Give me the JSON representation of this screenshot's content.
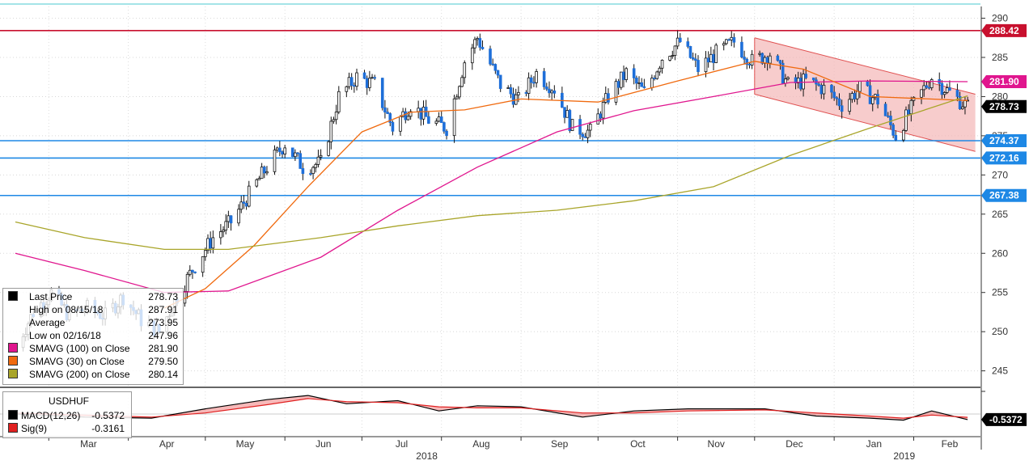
{
  "chart_data": [
    {
      "type": "candlestick",
      "title": "",
      "ticker": "USDHUF",
      "xlabel": "",
      "ylabel": "",
      "ylim": [
        243,
        291.5
      ],
      "y_ticks": [
        245,
        250,
        255,
        260,
        265,
        270,
        275,
        280,
        285,
        290
      ],
      "months": [
        "Mar",
        "Apr",
        "May",
        "Jun",
        "Jul",
        "Aug",
        "Sep",
        "Oct",
        "Nov",
        "Dec",
        "Jan",
        "Feb"
      ],
      "year_labels": [
        "2018",
        "2019"
      ],
      "grid": true,
      "price_path": [
        {
          "date": "2018-02-16",
          "price": 248.0
        },
        {
          "date": "2018-02-23",
          "price": 252.5
        },
        {
          "date": "2018-03-02",
          "price": 255.0
        },
        {
          "date": "2018-03-09",
          "price": 252.0
        },
        {
          "date": "2018-03-16",
          "price": 253.0
        },
        {
          "date": "2018-03-23",
          "price": 252.0
        },
        {
          "date": "2018-03-30",
          "price": 254.5
        },
        {
          "date": "2018-04-06",
          "price": 251.5
        },
        {
          "date": "2018-04-13",
          "price": 250.0
        },
        {
          "date": "2018-04-20",
          "price": 254.5
        },
        {
          "date": "2018-04-27",
          "price": 258.5
        },
        {
          "date": "2018-05-04",
          "price": 262.0
        },
        {
          "date": "2018-05-11",
          "price": 264.0
        },
        {
          "date": "2018-05-18",
          "price": 267.5
        },
        {
          "date": "2018-05-25",
          "price": 271.0
        },
        {
          "date": "2018-06-01",
          "price": 274.0
        },
        {
          "date": "2018-06-08",
          "price": 271.0
        },
        {
          "date": "2018-06-15",
          "price": 271.5
        },
        {
          "date": "2018-06-22",
          "price": 280.0
        },
        {
          "date": "2018-06-29",
          "price": 282.5
        },
        {
          "date": "2018-07-06",
          "price": 281.5
        },
        {
          "date": "2018-07-13",
          "price": 276.0
        },
        {
          "date": "2018-07-20",
          "price": 279.0
        },
        {
          "date": "2018-07-27",
          "price": 277.0
        },
        {
          "date": "2018-08-03",
          "price": 276.0
        },
        {
          "date": "2018-08-10",
          "price": 284.5
        },
        {
          "date": "2018-08-15",
          "price": 287.5
        },
        {
          "date": "2018-08-24",
          "price": 281.5
        },
        {
          "date": "2018-08-31",
          "price": 279.5
        },
        {
          "date": "2018-09-07",
          "price": 283.0
        },
        {
          "date": "2018-09-14",
          "price": 281.0
        },
        {
          "date": "2018-09-21",
          "price": 276.0
        },
        {
          "date": "2018-09-28",
          "price": 275.5
        },
        {
          "date": "2018-10-05",
          "price": 280.0
        },
        {
          "date": "2018-10-12",
          "price": 283.0
        },
        {
          "date": "2018-10-19",
          "price": 280.5
        },
        {
          "date": "2018-10-26",
          "price": 285.0
        },
        {
          "date": "2018-11-02",
          "price": 287.0
        },
        {
          "date": "2018-11-09",
          "price": 283.5
        },
        {
          "date": "2018-11-16",
          "price": 285.5
        },
        {
          "date": "2018-11-23",
          "price": 287.0
        },
        {
          "date": "2018-11-30",
          "price": 284.5
        },
        {
          "date": "2018-12-07",
          "price": 285.5
        },
        {
          "date": "2018-12-14",
          "price": 281.5
        },
        {
          "date": "2018-12-21",
          "price": 282.0
        },
        {
          "date": "2018-12-28",
          "price": 281.0
        },
        {
          "date": "2019-01-04",
          "price": 279.0
        },
        {
          "date": "2019-01-11",
          "price": 281.0
        },
        {
          "date": "2019-01-18",
          "price": 279.5
        },
        {
          "date": "2019-01-25",
          "price": 275.0
        },
        {
          "date": "2019-02-01",
          "price": 279.0
        },
        {
          "date": "2019-02-08",
          "price": 282.5
        },
        {
          "date": "2019-02-15",
          "price": 280.5
        },
        {
          "date": "2019-02-22",
          "price": 278.7
        }
      ],
      "moving_averages": [
        {
          "name": "SMAVG (100)",
          "color": "#e0168e",
          "points": [
            {
              "date": "2018-02-16",
              "value": 260.0
            },
            {
              "date": "2018-03-15",
              "value": 257.8
            },
            {
              "date": "2018-04-15",
              "value": 255.0
            },
            {
              "date": "2018-05-10",
              "value": 255.2
            },
            {
              "date": "2018-06-15",
              "value": 259.5
            },
            {
              "date": "2018-07-15",
              "value": 265.5
            },
            {
              "date": "2018-08-15",
              "value": 271.0
            },
            {
              "date": "2018-09-15",
              "value": 275.5
            },
            {
              "date": "2018-10-15",
              "value": 278.2
            },
            {
              "date": "2018-11-15",
              "value": 280.0
            },
            {
              "date": "2018-12-15",
              "value": 281.8
            },
            {
              "date": "2019-01-15",
              "value": 282.0
            },
            {
              "date": "2019-02-22",
              "value": 281.9
            }
          ]
        },
        {
          "name": "SMAVG (30)",
          "color": "#f06a0f",
          "points": [
            {
              "date": "2018-04-15",
              "value": 253.0
            },
            {
              "date": "2018-05-01",
              "value": 255.5
            },
            {
              "date": "2018-05-20",
              "value": 261.0
            },
            {
              "date": "2018-06-10",
              "value": 268.5
            },
            {
              "date": "2018-07-01",
              "value": 275.5
            },
            {
              "date": "2018-07-20",
              "value": 278.0
            },
            {
              "date": "2018-08-10",
              "value": 278.3
            },
            {
              "date": "2018-09-01",
              "value": 279.7
            },
            {
              "date": "2018-10-01",
              "value": 279.3
            },
            {
              "date": "2018-11-01",
              "value": 282.0
            },
            {
              "date": "2018-12-01",
              "value": 284.5
            },
            {
              "date": "2018-12-20",
              "value": 283.5
            },
            {
              "date": "2019-01-15",
              "value": 280.0
            },
            {
              "date": "2019-02-22",
              "value": 279.5
            }
          ]
        },
        {
          "name": "SMAVG (200)",
          "color": "#a9a52a",
          "points": [
            {
              "date": "2018-02-16",
              "value": 264.0
            },
            {
              "date": "2018-03-15",
              "value": 262.0
            },
            {
              "date": "2018-04-15",
              "value": 260.5
            },
            {
              "date": "2018-05-10",
              "value": 260.5
            },
            {
              "date": "2018-06-15",
              "value": 262.0
            },
            {
              "date": "2018-07-15",
              "value": 263.5
            },
            {
              "date": "2018-08-15",
              "value": 264.8
            },
            {
              "date": "2018-09-15",
              "value": 265.5
            },
            {
              "date": "2018-10-15",
              "value": 266.7
            },
            {
              "date": "2018-11-15",
              "value": 268.5
            },
            {
              "date": "2018-12-15",
              "value": 272.5
            },
            {
              "date": "2019-01-15",
              "value": 276.0
            },
            {
              "date": "2019-02-22",
              "value": 280.1
            }
          ]
        }
      ],
      "horizontal_levels": [
        {
          "value": 288.42,
          "label": "288.42",
          "color": "#c8102e"
        },
        {
          "value": 274.37,
          "label": "274.37",
          "color": "#1e88e5"
        },
        {
          "value": 272.16,
          "label": "272.16",
          "color": "#1e88e5"
        },
        {
          "value": 267.38,
          "label": "267.38",
          "color": "#1e88e5"
        }
      ],
      "price_tags": [
        {
          "value": 281.9,
          "label": "281.90",
          "color": "#e0168e",
          "text_color": "#ffffff"
        },
        {
          "value": 278.73,
          "label": "278.73",
          "color": "#000000",
          "text_color": "#ffffff"
        }
      ],
      "channel": {
        "upper": [
          {
            "date": "2018-12-01",
            "value": 287.5
          },
          {
            "date": "2019-02-25",
            "value": 280.3
          }
        ],
        "lower": [
          {
            "date": "2018-12-01",
            "value": 280.3
          },
          {
            "date": "2019-02-25",
            "value": 273.0
          }
        ],
        "fill": "#f4b6b6",
        "line": "#e05050"
      },
      "legend": {
        "rows": [
          {
            "label": "Last Price",
            "value": "278.73",
            "color": "#000000"
          },
          {
            "label": "High on 08/15/18",
            "value": "287.91",
            "color": ""
          },
          {
            "label": "Average",
            "value": "273.95",
            "color": ""
          },
          {
            "label": "Low on 02/16/18",
            "value": "247.96",
            "color": ""
          },
          {
            "label": "SMAVG (100)  on Close",
            "value": "281.90",
            "color": "#e0168e"
          },
          {
            "label": "SMAVG (30)  on Close",
            "value": "279.50",
            "color": "#f06a0f"
          },
          {
            "label": "SMAVG (200)  on Close",
            "value": "280.14",
            "color": "#a9a52a"
          }
        ]
      }
    },
    {
      "type": "line",
      "title": "",
      "panel": "MACD",
      "ticker": "USDHUF",
      "ylim": [
        -2.2,
        2.2
      ],
      "series": [
        {
          "name": "MACD(12,26)",
          "last": "-0.5372",
          "color": "#000000",
          "points": [
            {
              "date": "2018-02-16",
              "value": 0.0
            },
            {
              "date": "2018-03-15",
              "value": -0.3
            },
            {
              "date": "2018-04-10",
              "value": -0.4
            },
            {
              "date": "2018-05-01",
              "value": 0.5
            },
            {
              "date": "2018-05-25",
              "value": 1.4
            },
            {
              "date": "2018-06-10",
              "value": 1.8
            },
            {
              "date": "2018-06-25",
              "value": 1.0
            },
            {
              "date": "2018-07-15",
              "value": 1.3
            },
            {
              "date": "2018-07-31",
              "value": 0.3
            },
            {
              "date": "2018-08-15",
              "value": 0.8
            },
            {
              "date": "2018-09-01",
              "value": 0.7
            },
            {
              "date": "2018-09-25",
              "value": -0.3
            },
            {
              "date": "2018-10-15",
              "value": 0.3
            },
            {
              "date": "2018-11-05",
              "value": 0.5
            },
            {
              "date": "2018-12-05",
              "value": 0.5
            },
            {
              "date": "2018-12-25",
              "value": -0.2
            },
            {
              "date": "2019-01-15",
              "value": -0.4
            },
            {
              "date": "2019-01-28",
              "value": -0.6
            },
            {
              "date": "2019-02-08",
              "value": 0.3
            },
            {
              "date": "2019-02-22",
              "value": -0.54
            }
          ]
        },
        {
          "name": "Sig(9)",
          "last": "-0.3161",
          "color": "#e02020",
          "points": [
            {
              "date": "2018-02-16",
              "value": 0.1
            },
            {
              "date": "2018-03-15",
              "value": -0.1
            },
            {
              "date": "2018-04-10",
              "value": -0.3
            },
            {
              "date": "2018-05-01",
              "value": 0.1
            },
            {
              "date": "2018-05-25",
              "value": 0.9
            },
            {
              "date": "2018-06-10",
              "value": 1.5
            },
            {
              "date": "2018-06-25",
              "value": 1.2
            },
            {
              "date": "2018-07-15",
              "value": 1.1
            },
            {
              "date": "2018-07-31",
              "value": 0.7
            },
            {
              "date": "2018-08-15",
              "value": 0.6
            },
            {
              "date": "2018-09-01",
              "value": 0.6
            },
            {
              "date": "2018-09-25",
              "value": 0.1
            },
            {
              "date": "2018-10-15",
              "value": 0.1
            },
            {
              "date": "2018-11-05",
              "value": 0.3
            },
            {
              "date": "2018-12-05",
              "value": 0.4
            },
            {
              "date": "2018-12-25",
              "value": 0.1
            },
            {
              "date": "2019-01-15",
              "value": -0.2
            },
            {
              "date": "2019-01-28",
              "value": -0.4
            },
            {
              "date": "2019-02-08",
              "value": -0.1
            },
            {
              "date": "2019-02-22",
              "value": -0.32
            }
          ]
        }
      ],
      "price_tags": [
        {
          "value": -0.5372,
          "label": "-0.5372",
          "color": "#000000",
          "text_color": "#ffffff"
        }
      ]
    }
  ]
}
